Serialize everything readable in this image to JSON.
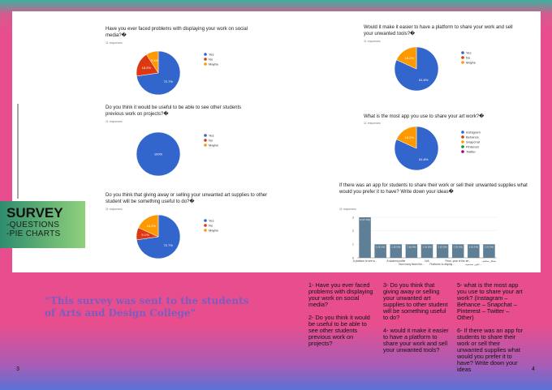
{
  "page": {
    "left_number": "3",
    "right_number": "4"
  },
  "sidebar": {
    "title": "SURVEY",
    "lines": [
      "-QUESTIONS",
      "-PIE CHARTS"
    ]
  },
  "charts": [
    {
      "type": "pie",
      "title": "Have you ever faced problems with displaying your work on social media?�",
      "responses": "11 responses",
      "categories": [
        "Yes",
        "No",
        "Maybe"
      ],
      "colors": [
        "#3366cc",
        "#dc3912",
        "#ff9900"
      ],
      "values": [
        72.7,
        18.2,
        9.1
      ],
      "value_labels": [
        "72.7%",
        "18.2%",
        "9.1%"
      ]
    },
    {
      "type": "pie",
      "title": "Do you think it would be useful to be able to see other students previous work on projects?�",
      "responses": "11 responses",
      "categories": [
        "Yes",
        "No",
        "Maybe"
      ],
      "colors": [
        "#3366cc",
        "#dc3912",
        "#ff9900"
      ],
      "values": [
        100,
        0,
        0
      ],
      "value_labels": [
        "100%",
        null,
        null
      ]
    },
    {
      "type": "pie",
      "title": "Do you think that giving away or selling your unwanted art supplies to other student will be something useful to do?�",
      "responses": "11 responses",
      "categories": [
        "Yes",
        "No",
        "Maybe"
      ],
      "colors": [
        "#3366cc",
        "#dc3912",
        "#ff9900"
      ],
      "values": [
        72.7,
        9.1,
        18.2
      ],
      "value_labels": [
        "72.7%",
        "9.1%",
        "18.2%"
      ]
    },
    {
      "type": "pie",
      "title": "Would it make it easier to have a platform to share your work and sell your unwanted tools?�",
      "responses": "11 responses",
      "categories": [
        "Yes",
        "No",
        "Maybe"
      ],
      "colors": [
        "#3366cc",
        "#dc3912",
        "#ff9900"
      ],
      "values": [
        81.8,
        0,
        18.2
      ],
      "value_labels": [
        "81.8%",
        null,
        "18.2%"
      ]
    },
    {
      "type": "pie",
      "title": "What is the most app you use to share your art work?�",
      "responses": "11 responses",
      "categories": [
        "Instagram",
        "Behance",
        "Snapchat",
        "Pinterest",
        "Twitter"
      ],
      "colors": [
        "#3366cc",
        "#dc3912",
        "#ff9900",
        "#109618",
        "#990099"
      ],
      "values": [
        81.8,
        0,
        18.2,
        0,
        0
      ],
      "value_labels": [
        "81.8%",
        null,
        "18.2%",
        null,
        null
      ]
    },
    {
      "type": "bar",
      "title": "If there was an app for students to share their work or sell their unwanted supplies what would you prefer it to have? Write down your ideas�",
      "responses": "11 responses",
      "categories": [
        "A platform to see w...",
        null,
        "A student profile",
        "How many times the...",
        "N/A",
        "Platforms to display ...",
        "Price- year of the art...",
        "تكون شخصية...",
        "بشكل مختلف"
      ],
      "values": [
        3,
        1,
        1,
        1,
        1,
        1,
        1,
        1,
        1
      ],
      "value_labels": [
        "3 (27.3%)",
        "1 (9.1%)",
        "1 (9.1%)",
        "1 (9.1%)",
        "1 (9.1%)",
        "1 (9.1%)",
        "1 (9.1%)",
        "1 (9.1%)",
        "1 (9.1%)"
      ],
      "color": "#5f7f96",
      "ylim": [
        0,
        3
      ],
      "yticks": [
        0,
        1,
        2,
        3
      ]
    }
  ],
  "quote": "“This survey was sent to the students of Arts and Design College”",
  "notes": [
    [
      "1- Have you ever faced problems with displaying your work on social media?",
      "2- Do you think it would be useful to be able to see other students previous work on projects?"
    ],
    [
      "3- Do you think that giving away or selling your unwanted art supplies to other student will be something useful to do?",
      "4- would it make it easier to have a platform to share your work and sell your unwanted tools?"
    ],
    [
      "5- what is the most app you use to share your art work? (Instagram – Behance – Snapchat – Pinterest – Twitter – Other)",
      "6- If there was an app for students to share their work or sell their unwanted supplies what would you prefer it to have? Write down your ideas"
    ]
  ]
}
